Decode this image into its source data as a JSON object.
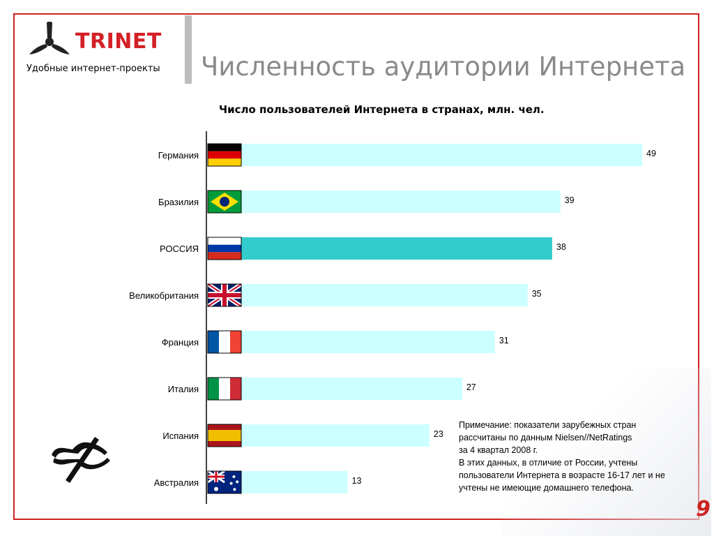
{
  "header": {
    "brand": "TRINET",
    "tagline": "Удобные интернет-проекты",
    "title": "Численность аудитории Интернета"
  },
  "chart_data": {
    "type": "bar",
    "orientation": "horizontal",
    "title": "Число пользователей Интернета в странах, млн. чел.",
    "categories": [
      "Германия",
      "Бразилия",
      "РОССИЯ",
      "Великобритания",
      "Франция",
      "Италия",
      "Испания",
      "Австралия"
    ],
    "values": [
      49,
      39,
      38,
      35,
      31,
      27,
      23,
      13
    ],
    "flags": [
      "de-flag-icon",
      "br-flag-icon",
      "ru-flag-icon",
      "gb-flag-icon",
      "fr-flag-icon",
      "it-flag-icon",
      "es-flag-icon",
      "au-flag-icon"
    ],
    "highlight": "РОССИЯ",
    "colors": {
      "bar": "#ccffff",
      "highlight": "#33cccc"
    },
    "grid": false
  },
  "note": {
    "lines": [
      "Примечание: показатели зарубежных стран",
      "рассчитаны по данным Nielsen//NetRatings",
      "за 4 квартал 2008 г.",
      "В этих данных, в отличие от России, учтены",
      "пользователи Интернета в возрасте 16-17 лет и не",
      "учтены не имеющие домашнего телефона."
    ]
  },
  "page_number": "9"
}
